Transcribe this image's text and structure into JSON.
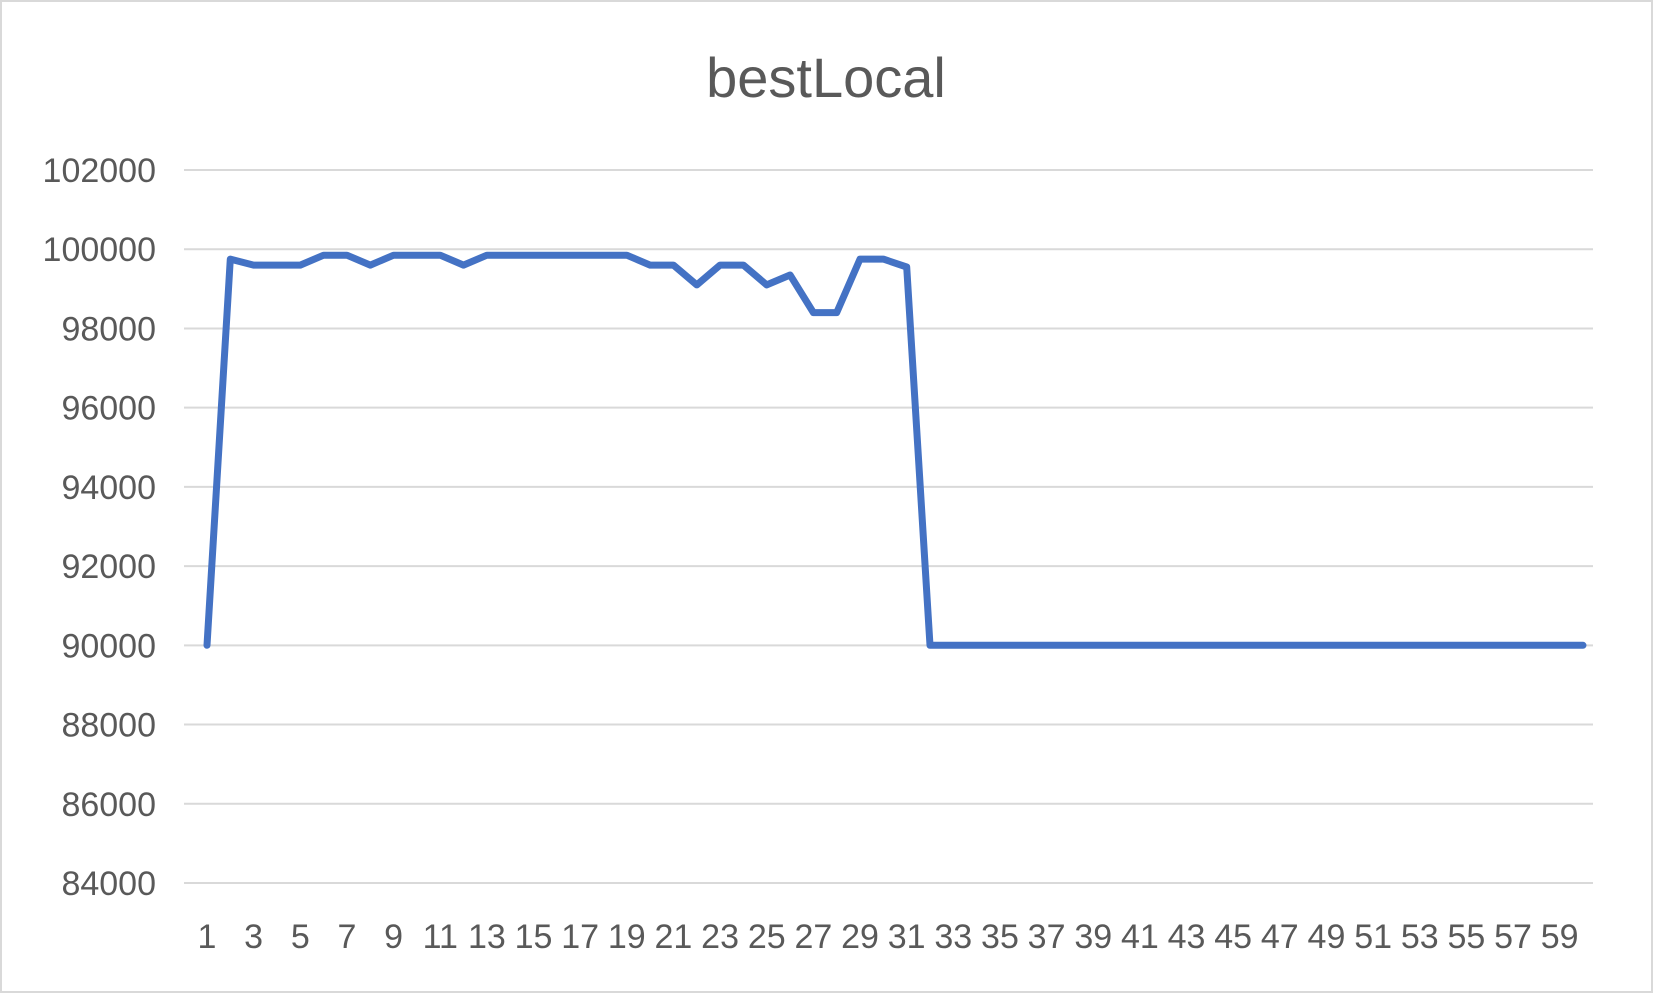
{
  "chart_data": {
    "type": "line",
    "title": "bestLocal",
    "xlabel": "",
    "ylabel": "",
    "ylim": [
      84000,
      102000
    ],
    "y_ticks": [
      84000,
      86000,
      88000,
      90000,
      92000,
      94000,
      96000,
      98000,
      100000,
      102000
    ],
    "x_tick_labels": [
      "1",
      "3",
      "5",
      "7",
      "9",
      "11",
      "13",
      "15",
      "17",
      "19",
      "21",
      "23",
      "25",
      "27",
      "29",
      "31",
      "33",
      "35",
      "37",
      "39",
      "41",
      "43",
      "45",
      "47",
      "49",
      "51",
      "53",
      "55",
      "57",
      "59"
    ],
    "grid": true,
    "legend": "none",
    "x": [
      1,
      2,
      3,
      4,
      5,
      6,
      7,
      8,
      9,
      10,
      11,
      12,
      13,
      14,
      15,
      16,
      17,
      18,
      19,
      20,
      21,
      22,
      23,
      24,
      25,
      26,
      27,
      28,
      29,
      30,
      31,
      32,
      33,
      34,
      35,
      36,
      37,
      38,
      39,
      40,
      41,
      42,
      43,
      44,
      45,
      46,
      47,
      48,
      49,
      50,
      51,
      52,
      53,
      54,
      55,
      56,
      57,
      58,
      59,
      60
    ],
    "series": [
      {
        "color": "#4472c4",
        "values": [
          90000,
          99750,
          99600,
          99600,
          99600,
          99850,
          99850,
          99600,
          99850,
          99850,
          99850,
          99600,
          99850,
          99850,
          99850,
          99850,
          99850,
          99850,
          99850,
          99600,
          99600,
          99100,
          99600,
          99600,
          99100,
          99350,
          98400,
          98400,
          99750,
          99750,
          99550,
          90000,
          90000,
          90000,
          90000,
          90000,
          90000,
          90000,
          90000,
          90000,
          90000,
          90000,
          90000,
          90000,
          90000,
          90000,
          90000,
          90000,
          90000,
          90000,
          90000,
          90000,
          90000,
          90000,
          90000,
          90000,
          90000,
          90000,
          90000,
          90000
        ]
      }
    ]
  }
}
